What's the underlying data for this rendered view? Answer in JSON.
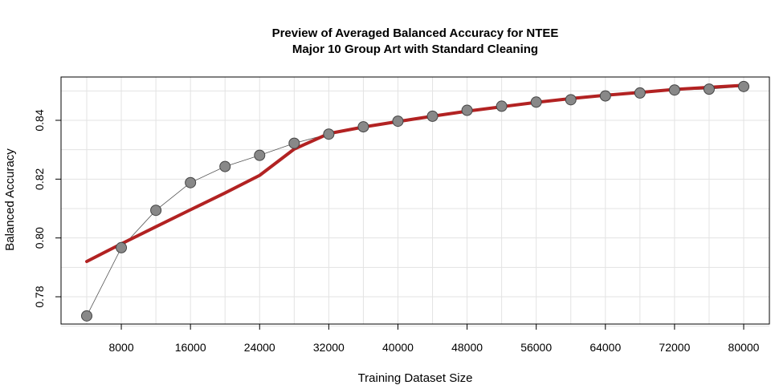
{
  "chart_data": {
    "type": "line",
    "title_line1": "Preview of Averaged Balanced Accuracy for NTEE",
    "title_line2": "Major 10 Group Art with Standard Cleaning",
    "xlabel": "Training Dataset Size",
    "ylabel": "Balanced Accuracy",
    "xlim": [
      4000,
      80000
    ],
    "ylim": [
      0.77,
      0.852
    ],
    "x_ticks": [
      8000,
      16000,
      24000,
      32000,
      40000,
      48000,
      56000,
      64000,
      72000,
      80000
    ],
    "x_tick_labels": [
      "8000",
      "16000",
      "24000",
      "32000",
      "40000",
      "48000",
      "56000",
      "64000",
      "72000",
      "80000"
    ],
    "y_ticks": [
      0.78,
      0.8,
      0.82,
      0.84
    ],
    "y_tick_labels": [
      "0.78",
      "0.80",
      "0.82",
      "0.84"
    ],
    "grid": true,
    "series": [
      {
        "kind": "points-with-line",
        "color": "#888888",
        "x": [
          4000,
          8000,
          12000,
          16000,
          20000,
          24000,
          28000,
          32000,
          36000,
          40000,
          44000,
          48000,
          52000,
          56000,
          60000,
          64000,
          68000,
          72000,
          76000,
          80000
        ],
        "values": [
          0.7735,
          0.7967,
          0.8094,
          0.8188,
          0.8243,
          0.8281,
          0.8322,
          0.8353,
          0.8378,
          0.8397,
          0.8414,
          0.8434,
          0.8448,
          0.8462,
          0.847,
          0.8483,
          0.8493,
          0.8503,
          0.8506,
          0.8515
        ]
      },
      {
        "kind": "smoothed-line",
        "color": "#b22222",
        "x": [
          4000,
          8000,
          12000,
          16000,
          20000,
          24000,
          28000,
          32000,
          36000,
          40000,
          44000,
          48000,
          52000,
          56000,
          60000,
          64000,
          68000,
          72000,
          76000,
          80000
        ],
        "values": [
          0.792,
          0.798,
          0.8038,
          0.8096,
          0.8153,
          0.8213,
          0.8302,
          0.8355,
          0.8377,
          0.8396,
          0.8414,
          0.8431,
          0.8446,
          0.8461,
          0.8474,
          0.8485,
          0.8495,
          0.8505,
          0.8512,
          0.8519
        ]
      }
    ]
  }
}
